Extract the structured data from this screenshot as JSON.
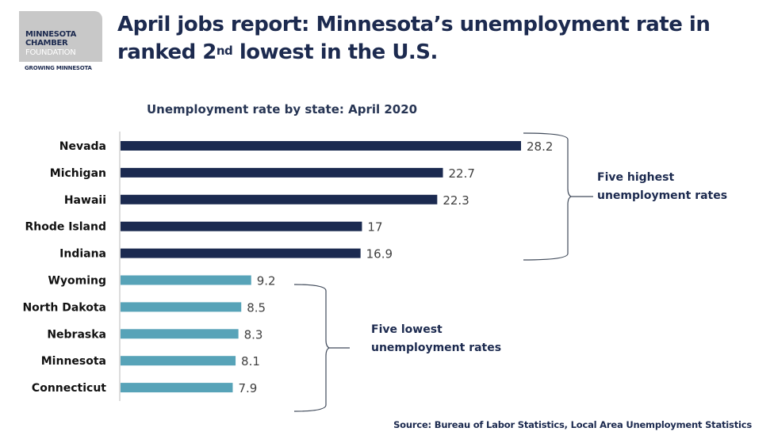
{
  "logo": {
    "line1": "MINNESOTA",
    "line2": "CHAMBER",
    "line3": "FOUNDATION",
    "tagline": "GROWING MINNESOTA"
  },
  "header": {
    "title_line1": "April jobs report: Minnesota’s unemployment rate in",
    "title_line2_pre": "ranked 2",
    "title_line2_sup": "nd",
    "title_line2_post": " lowest in the U.S."
  },
  "annotations": {
    "highest": [
      "Five highest",
      "unemployment rates"
    ],
    "lowest": [
      "Five lowest",
      "unemployment rates"
    ]
  },
  "source": "Source: Bureau of Labor Statistics, Local Area Unemployment Statistics",
  "colors": {
    "high": "#1b2a50",
    "low": "#57a3b8",
    "text": "#1c2a4f"
  },
  "chart_data": {
    "type": "bar",
    "orientation": "horizontal",
    "title": "Unemployment rate by state: April 2020",
    "xlabel": "",
    "ylabel": "",
    "categories": [
      "Nevada",
      "Michigan",
      "Hawaii",
      "Rhode Island",
      "Indiana",
      "Wyoming",
      "North Dakota",
      "Nebraska",
      "Minnesota",
      "Connecticut"
    ],
    "values": [
      28.2,
      22.7,
      22.3,
      17,
      16.9,
      9.2,
      8.5,
      8.3,
      8.1,
      7.9
    ],
    "value_labels": [
      "28.2",
      "22.7",
      "22.3",
      "17",
      "16.9",
      "9.2",
      "8.5",
      "8.3",
      "8.1",
      "7.9"
    ],
    "groups": [
      "high",
      "high",
      "high",
      "high",
      "high",
      "low",
      "low",
      "low",
      "low",
      "low"
    ],
    "xlim": [
      0,
      28.2
    ],
    "grid": false
  }
}
